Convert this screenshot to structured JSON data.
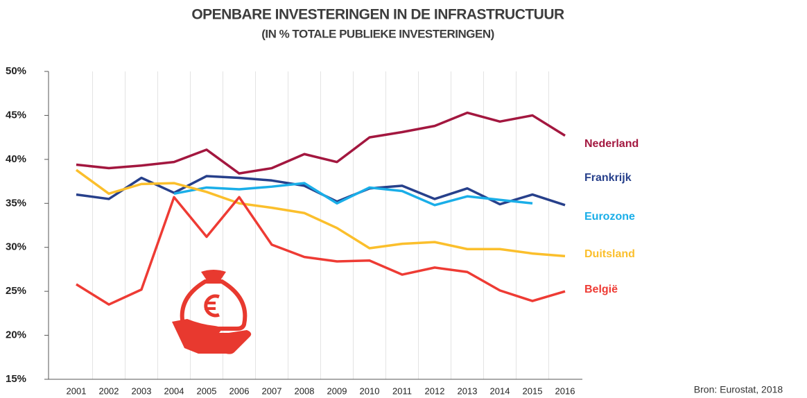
{
  "chart_data": {
    "type": "line",
    "title": "OPENBARE INVESTERINGEN IN DE INFRASTRUCTUUR",
    "subtitle": "(IN % TOTALE PUBLIEKE INVESTERINGEN)",
    "source": "Bron: Eurostat, 2018",
    "categories": [
      "2001",
      "2002",
      "2003",
      "2004",
      "2005",
      "2006",
      "2007",
      "2008",
      "2009",
      "2010",
      "2011",
      "2012",
      "2013",
      "2014",
      "2015",
      "2016"
    ],
    "ylim": [
      15,
      50
    ],
    "yticks": [
      {
        "value": 15,
        "label": "15%"
      },
      {
        "value": 20,
        "label": "20%"
      },
      {
        "value": 25,
        "label": "25%"
      },
      {
        "value": 30,
        "label": "30%"
      },
      {
        "value": 35,
        "label": "35%"
      },
      {
        "value": 40,
        "label": "40%"
      },
      {
        "value": 45,
        "label": "45%"
      },
      {
        "value": 50,
        "label": "50%"
      }
    ],
    "series": [
      {
        "name": "Nederland",
        "color": "#a3173f",
        "values": [
          39.4,
          39.0,
          39.3,
          39.7,
          41.1,
          38.4,
          39.0,
          40.6,
          39.7,
          42.5,
          43.1,
          43.8,
          45.3,
          44.3,
          45.0,
          42.7
        ]
      },
      {
        "name": "Frankrijk",
        "color": "#27408b",
        "values": [
          36.0,
          35.5,
          37.9,
          36.2,
          38.1,
          37.9,
          37.6,
          37.0,
          35.2,
          36.7,
          37.0,
          35.5,
          36.7,
          34.9,
          36.0,
          34.8
        ]
      },
      {
        "name": "Eurozone",
        "color": "#1aaee8",
        "values": [
          null,
          null,
          null,
          36.1,
          36.8,
          36.6,
          36.9,
          37.3,
          35.0,
          36.8,
          36.4,
          34.8,
          35.8,
          35.4,
          35.0,
          null
        ]
      },
      {
        "name": "Duitsland",
        "color": "#fbbf2c",
        "values": [
          38.8,
          36.1,
          37.2,
          37.3,
          36.3,
          35.0,
          34.5,
          33.9,
          32.2,
          29.9,
          30.4,
          30.6,
          29.8,
          29.8,
          29.3,
          29.0
        ]
      },
      {
        "name": "België",
        "color": "#ee3b34",
        "values": [
          25.8,
          23.5,
          25.2,
          35.7,
          31.2,
          35.7,
          30.3,
          28.9,
          28.4,
          28.5,
          26.9,
          27.7,
          27.2,
          25.1,
          23.9,
          25.0
        ]
      }
    ]
  }
}
